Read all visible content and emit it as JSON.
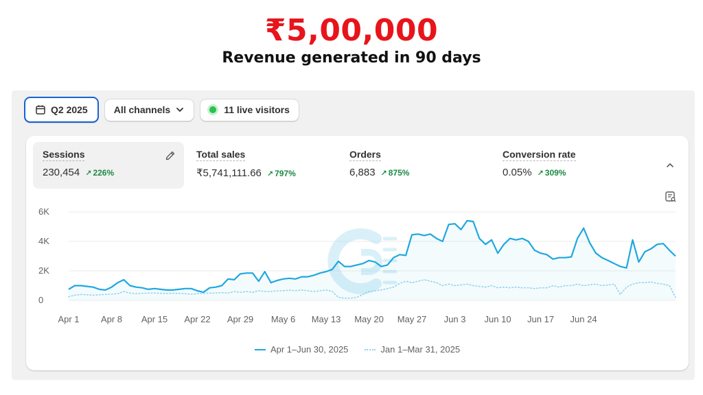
{
  "headline": {
    "amount": "₹5,00,000",
    "subtitle": "Revenue generated in 90 days"
  },
  "toolbar": {
    "date_range": "Q2 2025",
    "channels": "All channels",
    "live_visitors": "11 live visitors"
  },
  "metrics": [
    {
      "label": "Sessions",
      "value": "230,454",
      "change": "226%"
    },
    {
      "label": "Total sales",
      "value": "₹5,741,111.66",
      "change": "797%"
    },
    {
      "label": "Orders",
      "value": "6,883",
      "change": "875%"
    },
    {
      "label": "Conversion rate",
      "value": "0.05%",
      "change": "309%"
    }
  ],
  "colors": {
    "primary_series": "#1ea7e0",
    "comparison_series": "#8fd3ef",
    "positive_change": "#1b8a43",
    "headline_red": "#e8141b",
    "focus_blue": "#1662d4"
  },
  "icons": {
    "date": "calendar-icon",
    "dropdown": "chevron-down-icon",
    "edit": "pencil-icon",
    "collapse": "chevron-up-icon",
    "chart_options": "chart-options-icon",
    "watermark": "logo-watermark"
  },
  "chart_data": {
    "type": "line",
    "ylabel": "",
    "xlabel": "",
    "ylim": [
      0,
      6000
    ],
    "y_ticks": [
      "0",
      "2K",
      "4K",
      "6K"
    ],
    "x_ticks": [
      "Apr 1",
      "Apr 8",
      "Apr 15",
      "Apr 22",
      "Apr 29",
      "May 6",
      "May 13",
      "May 20",
      "May 27",
      "Jun 3",
      "Jun 10",
      "Jun 17",
      "Jun 24"
    ],
    "grid": true,
    "legend_position": "bottom-center",
    "series": [
      {
        "name": "Apr 1–Jun 30, 2025",
        "style": "solid",
        "values": [
          750,
          1000,
          1000,
          950,
          900,
          750,
          700,
          900,
          1200,
          1400,
          1000,
          900,
          850,
          750,
          800,
          750,
          700,
          700,
          750,
          800,
          800,
          650,
          550,
          850,
          900,
          1000,
          1450,
          1400,
          1800,
          1850,
          1850,
          1300,
          1950,
          1200,
          1350,
          1450,
          1500,
          1450,
          1600,
          1600,
          1700,
          1850,
          1950,
          2100,
          2650,
          2300,
          2300,
          2400,
          2500,
          2700,
          2600,
          2300,
          2400,
          2900,
          3100,
          3050,
          4450,
          4500,
          4400,
          4500,
          4200,
          4000,
          5150,
          5200,
          4800,
          5400,
          5350,
          4200,
          3800,
          4100,
          3200,
          3800,
          4200,
          4100,
          4200,
          4000,
          3400,
          3200,
          3100,
          2800,
          2900,
          2900,
          2950,
          4200,
          4900,
          3900,
          3200,
          2900,
          2700,
          2500,
          2300,
          2200,
          4100,
          2600,
          3300,
          3500,
          3800,
          3850,
          3400,
          3000
        ]
      },
      {
        "name": "Jan 1–Mar 31, 2025",
        "style": "dotted",
        "values": [
          250,
          350,
          400,
          380,
          350,
          380,
          400,
          420,
          450,
          600,
          500,
          450,
          480,
          500,
          500,
          480,
          470,
          480,
          480,
          450,
          420,
          450,
          480,
          500,
          500,
          520,
          500,
          600,
          550,
          600,
          550,
          650,
          600,
          600,
          650,
          650,
          700,
          650,
          700,
          650,
          600,
          650,
          700,
          600,
          200,
          150,
          150,
          200,
          400,
          600,
          650,
          700,
          800,
          900,
          1150,
          1300,
          1200,
          1300,
          1400,
          1300,
          1200,
          1000,
          1100,
          1000,
          1050,
          1100,
          1000,
          950,
          900,
          1000,
          850,
          900,
          850,
          900,
          850,
          850,
          800,
          850,
          850,
          1000,
          900,
          1000,
          1000,
          1100,
          1000,
          1050,
          1100,
          1000,
          1050,
          1100,
          400,
          900,
          1100,
          1200,
          1200,
          1250,
          1150,
          1100,
          1000,
          200
        ]
      }
    ]
  }
}
